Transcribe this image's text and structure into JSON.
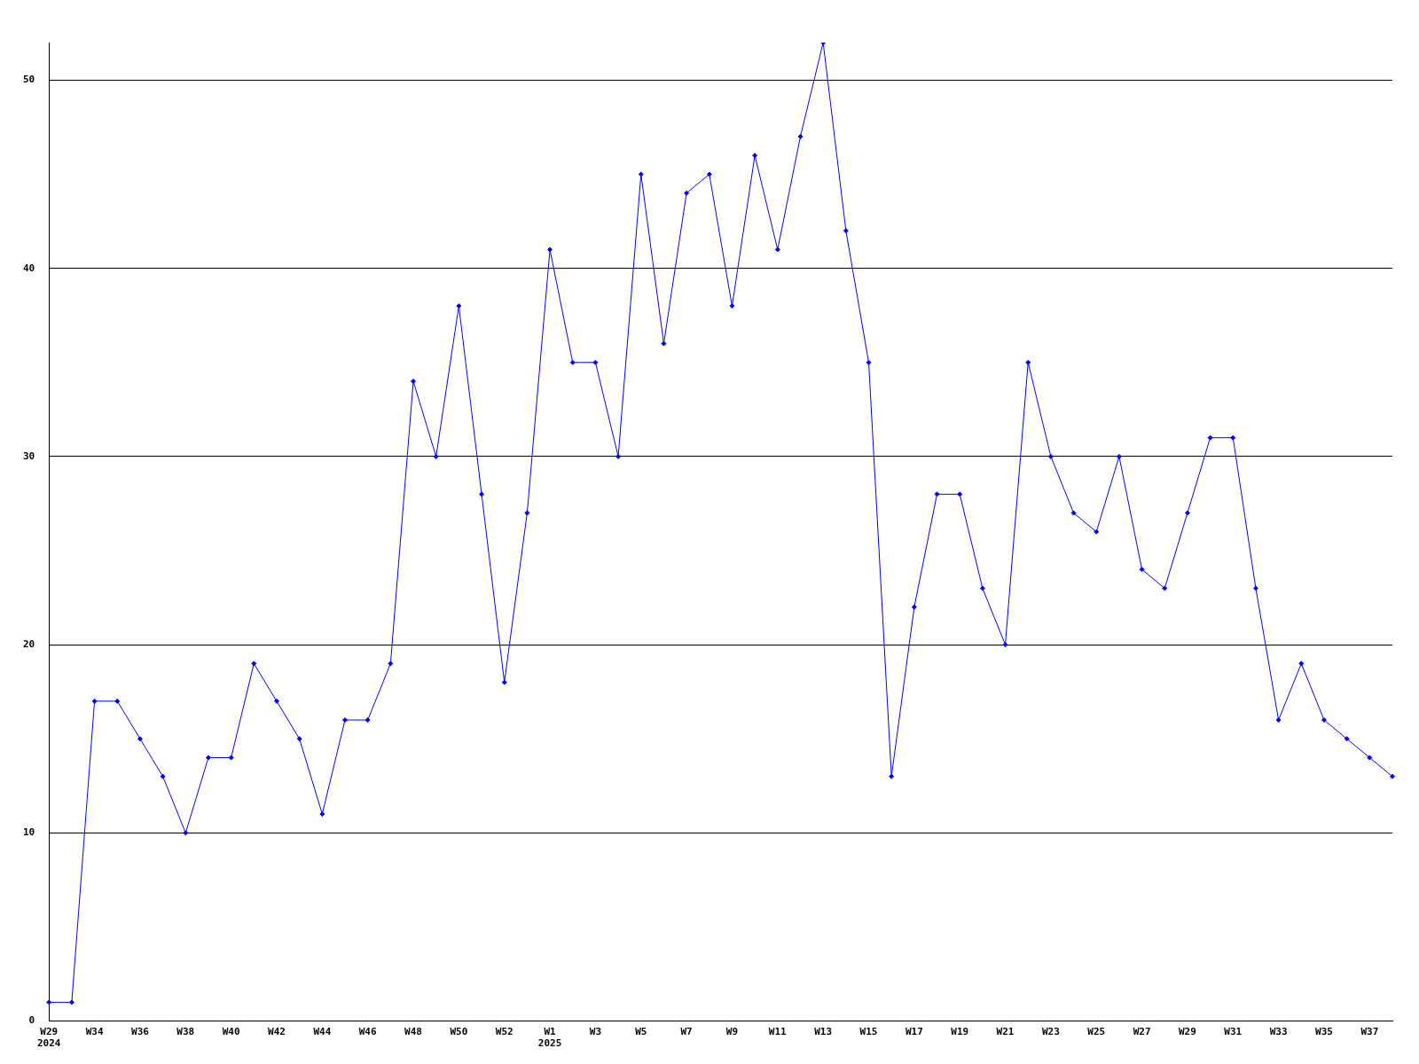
{
  "chart_data": {
    "type": "line",
    "categories": [
      "W29\n2024",
      null,
      "W34",
      null,
      "W36",
      null,
      "W38",
      null,
      "W40",
      null,
      "W42",
      null,
      "W44",
      null,
      "W46",
      null,
      "W48",
      null,
      "W50",
      null,
      "W52",
      null,
      "W1\n2025",
      null,
      "W3",
      null,
      "W5",
      null,
      "W7",
      null,
      "W9",
      null,
      "W11",
      null,
      "W13",
      null,
      "W15",
      null,
      "W17",
      null,
      "W19",
      null,
      "W21",
      null,
      "W23",
      null,
      "W25",
      null,
      "W27",
      null,
      "W29",
      null,
      "W31",
      null,
      "W33",
      null,
      "W35",
      null,
      "W37",
      null
    ],
    "series": [
      {
        "color": "#0000ff",
        "values": [
          1,
          1,
          17,
          17,
          15,
          13,
          10,
          14,
          14,
          19,
          17,
          15,
          11,
          16,
          16,
          19,
          34,
          30,
          38,
          28,
          18,
          27,
          41,
          35,
          35,
          30,
          45,
          36,
          44,
          45,
          38,
          46,
          41,
          47,
          52,
          42,
          35,
          13,
          22,
          28,
          28,
          23,
          20,
          35,
          30,
          27,
          26,
          30,
          24,
          23,
          27,
          31,
          31,
          23,
          16,
          19,
          16,
          15,
          14,
          13
        ]
      }
    ],
    "ylim": [
      0,
      52
    ],
    "yticks": [
      0,
      10,
      20,
      30,
      40,
      50
    ],
    "grid": "y",
    "legend": false,
    "marker": "diamond",
    "line_style": "solid"
  }
}
